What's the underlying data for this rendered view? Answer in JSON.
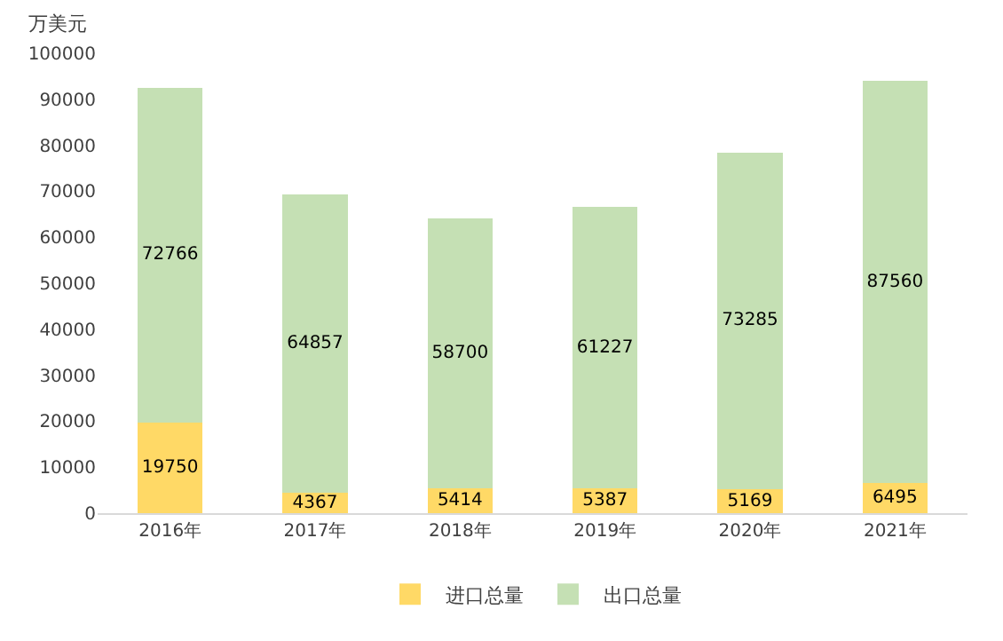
{
  "chart_data": {
    "type": "bar",
    "stacked": true,
    "ylabel": "万美元",
    "categories": [
      "2016年",
      "2017年",
      "2018年",
      "2019年",
      "2020年",
      "2021年"
    ],
    "series": [
      {
        "name": "进口总量",
        "color": "#ffd966",
        "values": [
          19750,
          4367,
          5414,
          5387,
          5169,
          6495
        ]
      },
      {
        "name": "出口总量",
        "color": "#c5e0b4",
        "values": [
          72766,
          64857,
          58700,
          61227,
          73285,
          87560
        ]
      }
    ],
    "ylim": [
      0,
      100000
    ],
    "yticks": [
      0,
      10000,
      20000,
      30000,
      40000,
      50000,
      60000,
      70000,
      80000,
      90000,
      100000
    ],
    "data_labels": true,
    "grid": false,
    "legend": "bottom"
  }
}
